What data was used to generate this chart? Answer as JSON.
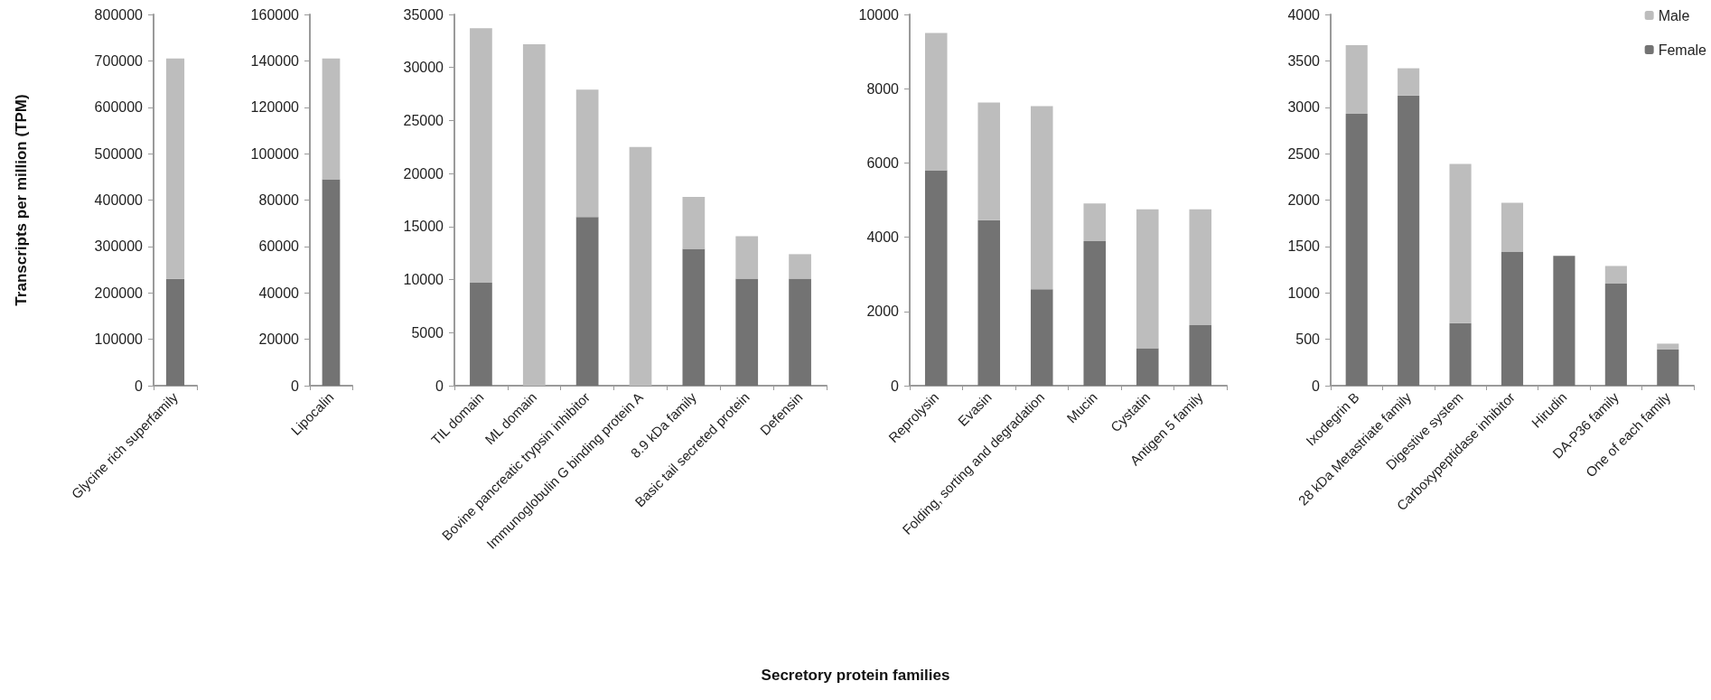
{
  "chart_data": [
    {
      "type": "bar",
      "stacked": true,
      "ylabel": "Transcripts per million (TPM)",
      "categories": [
        "Glycine rich superfamily"
      ],
      "ylim": [
        0,
        800000
      ],
      "yticks": [
        0,
        100000,
        200000,
        300000,
        400000,
        500000,
        600000,
        700000,
        800000
      ],
      "series": [
        {
          "color": "#737373",
          "values": [
            230000
          ]
        },
        {
          "color": "#bdbdbd",
          "values": [
            475000
          ]
        }
      ]
    },
    {
      "type": "bar",
      "stacked": true,
      "categories": [
        "Lipocalin"
      ],
      "ylim": [
        0,
        160000
      ],
      "yticks": [
        0,
        20000,
        40000,
        60000,
        80000,
        100000,
        120000,
        140000,
        160000
      ],
      "series": [
        {
          "color": "#737373",
          "values": [
            89000
          ]
        },
        {
          "color": "#bdbdbd",
          "values": [
            52000
          ]
        }
      ]
    },
    {
      "type": "bar",
      "stacked": true,
      "xlabel": "Secretory protein families",
      "categories": [
        "TIL domain",
        "ML domain",
        "Bovine pancreatic trypsin inhibitor",
        "Immunoglobulin G binding protein A",
        "8.9 kDa family",
        "Basic tail secreted protein",
        "Defensin"
      ],
      "ylim": [
        0,
        35000
      ],
      "yticks": [
        0,
        5000,
        10000,
        15000,
        20000,
        25000,
        30000,
        35000
      ],
      "series": [
        {
          "color": "#737373",
          "values": [
            9700,
            0,
            15900,
            0,
            12900,
            10100,
            10100
          ]
        },
        {
          "color": "#bdbdbd",
          "values": [
            24000,
            32200,
            12000,
            22500,
            4900,
            4000,
            2300
          ]
        }
      ]
    },
    {
      "type": "bar",
      "stacked": true,
      "categories": [
        "Reprolysin",
        "Evasin",
        "Folding, sorting and degradation",
        "Mucin",
        "Cystatin",
        "Antigen 5 family"
      ],
      "ylim": [
        0,
        10000
      ],
      "yticks": [
        0,
        2000,
        4000,
        6000,
        8000,
        10000
      ],
      "series": [
        {
          "color": "#737373",
          "values": [
            5800,
            4460,
            2600,
            3890,
            1010,
            1630
          ]
        },
        {
          "color": "#bdbdbd",
          "values": [
            3700,
            3170,
            4930,
            1020,
            3740,
            3120
          ]
        }
      ]
    },
    {
      "type": "bar",
      "stacked": true,
      "legend": "top right",
      "categories": [
        "Ixodegrin B",
        "28 kDa Metastriate family",
        "Digestive system",
        "Carboxypeptidase inhibitor",
        "Hirudin",
        "DA-P36 family",
        "One of each family"
      ],
      "ylim": [
        0,
        4000
      ],
      "yticks": [
        0,
        500,
        1000,
        1500,
        2000,
        2500,
        3000,
        3500,
        4000
      ],
      "series": [
        {
          "name": "Female",
          "color": "#737373",
          "values": [
            2930,
            3125,
            675,
            1440,
            1400,
            1100,
            390
          ]
        },
        {
          "name": "Male",
          "color": "#bdbdbd",
          "values": [
            740,
            295,
            1715,
            530,
            0,
            190,
            63
          ]
        }
      ]
    }
  ]
}
